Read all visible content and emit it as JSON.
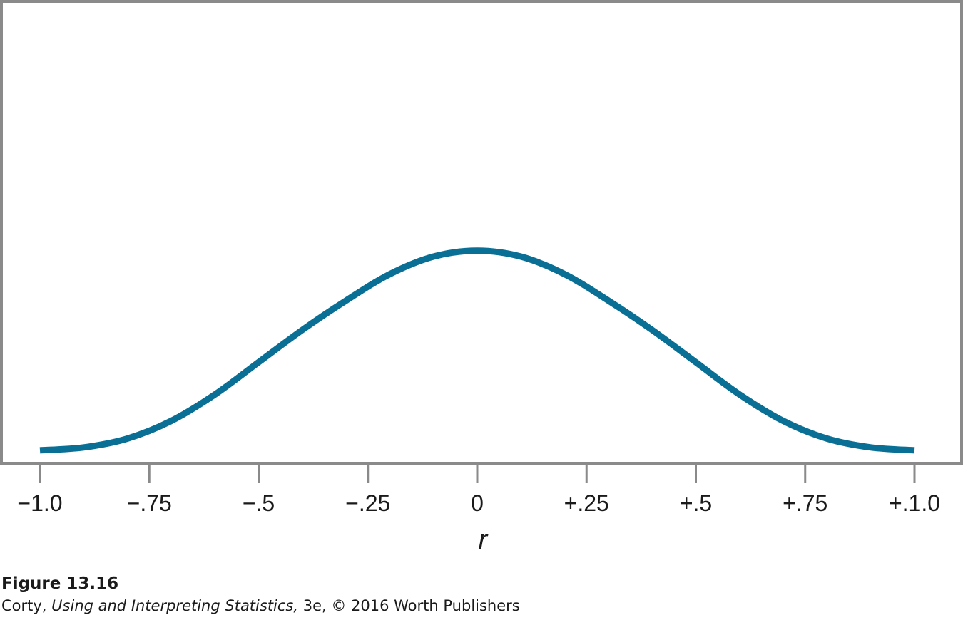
{
  "chart_data": {
    "type": "line",
    "title": "",
    "xlabel": "r",
    "ylabel": "",
    "xlim": [
      -1.0,
      1.0
    ],
    "ylim": [
      0,
      1
    ],
    "grid": false,
    "x_ticks": [
      -1.0,
      -0.75,
      -0.5,
      -0.25,
      0,
      0.25,
      0.5,
      0.75,
      1.0
    ],
    "x_tick_labels": [
      "−1.0",
      "−.75",
      "−.5",
      "−.25",
      "0",
      "+.25",
      "+.5",
      "+.75",
      "+.1.0"
    ],
    "series": [
      {
        "x": [
          -1.0,
          -0.9,
          -0.8,
          -0.7,
          -0.6,
          -0.5,
          -0.4,
          -0.3,
          -0.2,
          -0.1,
          0,
          0.1,
          0.2,
          0.3,
          0.4,
          0.5,
          0.6,
          0.7,
          0.8,
          0.9,
          1.0
        ],
        "y": [
          0.01,
          0.02,
          0.05,
          0.11,
          0.2,
          0.31,
          0.42,
          0.52,
          0.61,
          0.67,
          0.69,
          0.67,
          0.61,
          0.52,
          0.42,
          0.31,
          0.2,
          0.11,
          0.05,
          0.02,
          0.01
        ]
      }
    ]
  },
  "colors": {
    "curve": "#0a6f95",
    "frame": "#8a8a8a",
    "text": "#1a1a1a"
  },
  "caption": {
    "figure": "Figure 13.16",
    "author": "Corty, ",
    "book": "Using and Interpreting Statistics,",
    "rest": " 3e, © 2016 Worth Publishers"
  }
}
